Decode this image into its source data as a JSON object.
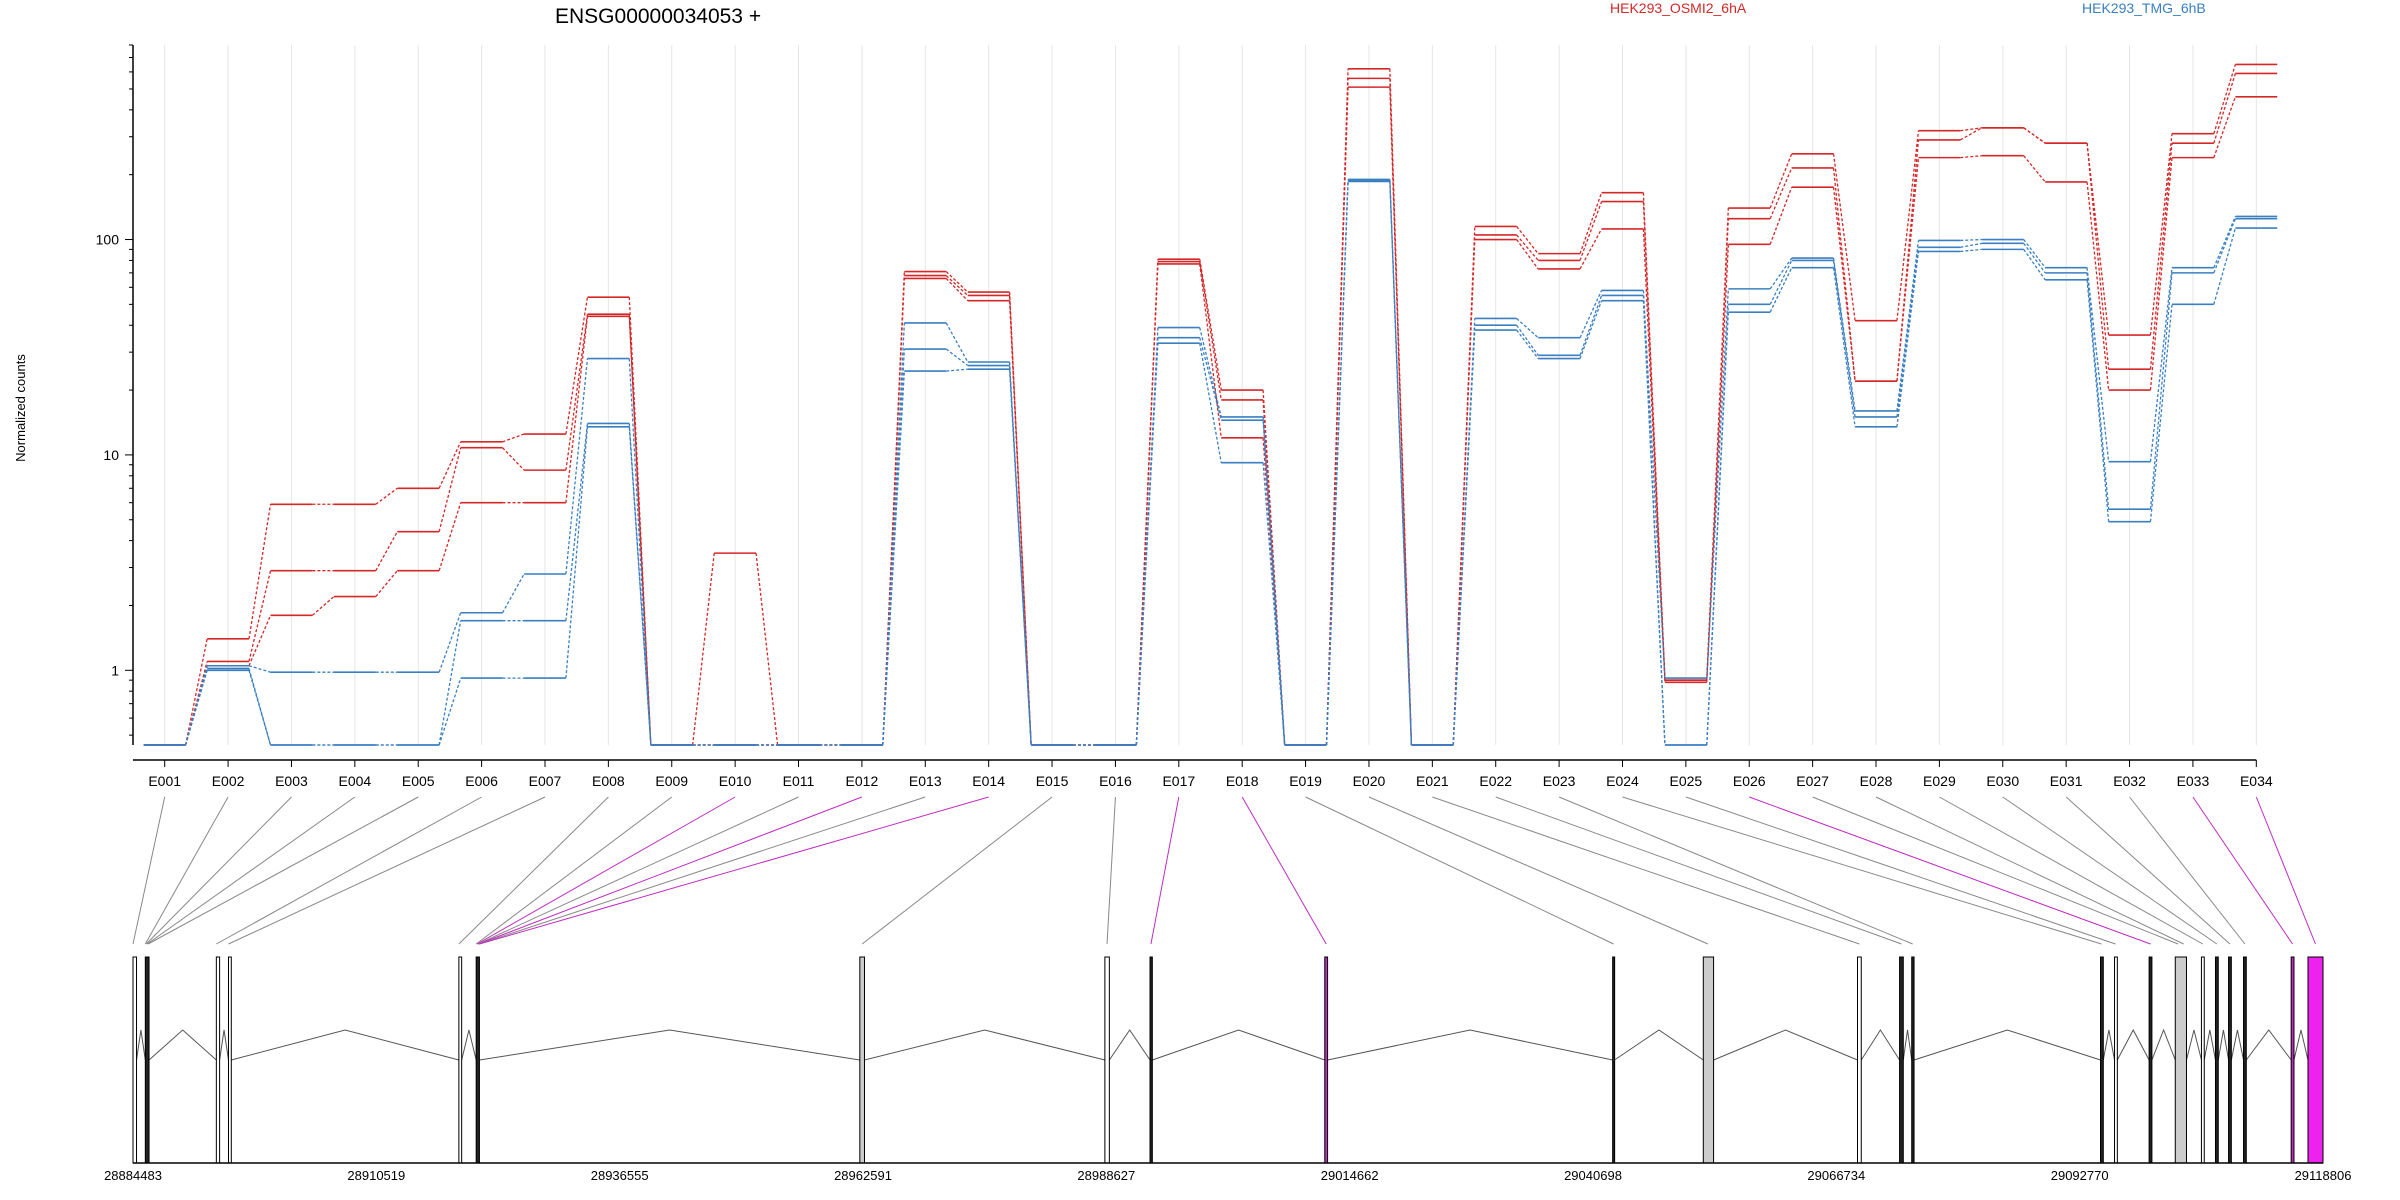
{
  "chart_data": {
    "type": "line",
    "title": "ENSG00000034053 +",
    "ylabel": "Normalized counts",
    "yscale": "log",
    "ylim": [
      0.45,
      800
    ],
    "y_ticks": [
      1,
      10,
      100
    ],
    "y_tick_labels": [
      "1",
      "10",
      "100"
    ],
    "grid": "vertical",
    "legend": [
      {
        "name": "HEK293_OSMI2_6hA",
        "color": "#d62728"
      },
      {
        "name": "HEK293_TMG_6hB",
        "color": "#3a7fc1"
      }
    ],
    "categories": [
      "E001",
      "E002",
      "E003",
      "E004",
      "E005",
      "E006",
      "E007",
      "E008",
      "E009",
      "E010",
      "E011",
      "E012",
      "E013",
      "E014",
      "E015",
      "E016",
      "E017",
      "E018",
      "E019",
      "E020",
      "E021",
      "E022",
      "E023",
      "E024",
      "E025",
      "E026",
      "E027",
      "E028",
      "E029",
      "E030",
      "E031",
      "E032",
      "E033",
      "E034"
    ],
    "series": [
      {
        "group": "HEK293_OSMI2_6hA",
        "color": "#d62728",
        "values": [
          0.45,
          1.4,
          5.9,
          5.9,
          7,
          11.5,
          12.5,
          54,
          0.45,
          3.5,
          0.45,
          0.45,
          71,
          57,
          0.45,
          0.45,
          81,
          20,
          0.45,
          620,
          0.45,
          115,
          86,
          165,
          0.9,
          140,
          250,
          42,
          320,
          330,
          280,
          36,
          310,
          650
        ]
      },
      {
        "group": "HEK293_OSMI2_6hA",
        "color": "#d62728",
        "values": [
          0.45,
          1.1,
          2.9,
          2.9,
          4.4,
          10.8,
          8.5,
          45,
          0.45,
          0.45,
          0.45,
          0.45,
          68,
          55,
          0.45,
          0.45,
          79,
          18,
          0.45,
          560,
          0.45,
          105,
          80,
          150,
          0.9,
          125,
          215,
          22,
          290,
          330,
          280,
          25,
          280,
          590
        ]
      },
      {
        "group": "HEK293_OSMI2_6hA",
        "color": "#d62728",
        "values": [
          0.45,
          1.05,
          1.8,
          2.2,
          2.9,
          6,
          6,
          44,
          0.45,
          0.45,
          0.45,
          0.45,
          66,
          52,
          0.45,
          0.45,
          77,
          12,
          0.45,
          510,
          0.45,
          100,
          73,
          112,
          0.88,
          95,
          175,
          22,
          240,
          245,
          185,
          20,
          240,
          460
        ]
      },
      {
        "group": "HEK293_TMG_6hB",
        "color": "#3a7fc1",
        "values": [
          0.45,
          1.05,
          0.98,
          0.98,
          0.98,
          1.85,
          2.8,
          28,
          0.45,
          0.45,
          0.45,
          0.45,
          41,
          27,
          0.45,
          0.45,
          39,
          15,
          0.45,
          190,
          0.45,
          43,
          35,
          58,
          0.92,
          59,
          82,
          16,
          99,
          100,
          74,
          9.3,
          74,
          128
        ]
      },
      {
        "group": "HEK293_TMG_6hB",
        "color": "#3a7fc1",
        "values": [
          0.45,
          1.02,
          0.45,
          0.45,
          0.45,
          1.7,
          1.7,
          14,
          0.45,
          0.45,
          0.45,
          0.45,
          31,
          26,
          0.45,
          0.45,
          35,
          14.5,
          0.45,
          188,
          0.45,
          40,
          29,
          55,
          0.45,
          50,
          80,
          15,
          92,
          96,
          70,
          5.6,
          70,
          125
        ]
      },
      {
        "group": "HEK293_TMG_6hB",
        "color": "#3a7fc1",
        "values": [
          0.45,
          1.0,
          0.45,
          0.45,
          0.45,
          0.92,
          0.92,
          13.5,
          0.45,
          0.45,
          0.45,
          0.45,
          24.5,
          25,
          0.45,
          0.45,
          33,
          9.2,
          0.45,
          186,
          0.45,
          38,
          28,
          52,
          0.45,
          46,
          74,
          13.5,
          88,
          90,
          65,
          4.9,
          50,
          113
        ]
      }
    ],
    "gene_model": {
      "coordinates": [
        "28884483",
        "28910519",
        "28936555",
        "28962591",
        "28988627",
        "29014662",
        "29040698",
        "29066734",
        "29092770",
        "29118806"
      ],
      "range": [
        28884483,
        29118806
      ],
      "exons": [
        {
          "start": 28884483,
          "end": 28884860,
          "color": "#ffffff"
        },
        {
          "start": 28885800,
          "end": 28886200,
          "color": "#222222"
        },
        {
          "start": 28893400,
          "end": 28893750,
          "color": "#ffffff"
        },
        {
          "start": 28894700,
          "end": 28895000,
          "color": "#ffffff"
        },
        {
          "start": 28919350,
          "end": 28919650,
          "color": "#ffffff"
        },
        {
          "start": 28921200,
          "end": 28921550,
          "color": "#222222"
        },
        {
          "start": 28962250,
          "end": 28962750,
          "color": "#cccccc"
        },
        {
          "start": 28988470,
          "end": 28988950,
          "color": "#ffffff"
        },
        {
          "start": 28993300,
          "end": 28993550,
          "color": "#222222"
        },
        {
          "start": 29012000,
          "end": 29012300,
          "color": "#c02cc0"
        },
        {
          "start": 29042800,
          "end": 29043000,
          "color": "#222222"
        },
        {
          "start": 29052500,
          "end": 29053600,
          "color": "#cccccc"
        },
        {
          "start": 29069000,
          "end": 29069400,
          "color": "#ffffff"
        },
        {
          "start": 29073500,
          "end": 29073900,
          "color": "#222222"
        },
        {
          "start": 29074800,
          "end": 29075050,
          "color": "#222222"
        },
        {
          "start": 29095000,
          "end": 29095300,
          "color": "#222222"
        },
        {
          "start": 29096500,
          "end": 29096800,
          "color": "#ffffff"
        },
        {
          "start": 29100200,
          "end": 29100500,
          "color": "#222222"
        },
        {
          "start": 29103000,
          "end": 29104200,
          "color": "#cccccc"
        },
        {
          "start": 29105800,
          "end": 29106100,
          "color": "#ffffff"
        },
        {
          "start": 29107300,
          "end": 29107600,
          "color": "#222222"
        },
        {
          "start": 29108700,
          "end": 29109000,
          "color": "#222222"
        },
        {
          "start": 29110300,
          "end": 29110600,
          "color": "#222222"
        },
        {
          "start": 29115400,
          "end": 29115700,
          "color": "#c02cc0"
        },
        {
          "start": 29117200,
          "end": 29118806,
          "color": "#ee22ee"
        }
      ],
      "bin_links": [
        {
          "bin": "E001",
          "pos": 28884483,
          "color": "#888888"
        },
        {
          "bin": "E002",
          "pos": 28885800,
          "color": "#888888"
        },
        {
          "bin": "E003",
          "pos": 28885900,
          "color": "#888888"
        },
        {
          "bin": "E004",
          "pos": 28886000,
          "color": "#888888"
        },
        {
          "bin": "E005",
          "pos": 28886100,
          "color": "#888888"
        },
        {
          "bin": "E006",
          "pos": 28893400,
          "color": "#888888"
        },
        {
          "bin": "E007",
          "pos": 28894700,
          "color": "#888888"
        },
        {
          "bin": "E008",
          "pos": 28919350,
          "color": "#888888"
        },
        {
          "bin": "E009",
          "pos": 28921200,
          "color": "#888888"
        },
        {
          "bin": "E010",
          "pos": 28921300,
          "color": "#c02cc0"
        },
        {
          "bin": "E011",
          "pos": 28921400,
          "color": "#888888"
        },
        {
          "bin": "E012",
          "pos": 28921450,
          "color": "#c02cc0"
        },
        {
          "bin": "E013",
          "pos": 28921500,
          "color": "#888888"
        },
        {
          "bin": "E014",
          "pos": 28921550,
          "color": "#c02cc0"
        },
        {
          "bin": "E015",
          "pos": 28962500,
          "color": "#888888"
        },
        {
          "bin": "E016",
          "pos": 28988700,
          "color": "#888888"
        },
        {
          "bin": "E017",
          "pos": 28993400,
          "color": "#c02cc0"
        },
        {
          "bin": "E018",
          "pos": 29012150,
          "color": "#c02cc0"
        },
        {
          "bin": "E019",
          "pos": 29042900,
          "color": "#888888"
        },
        {
          "bin": "E020",
          "pos": 29053000,
          "color": "#888888"
        },
        {
          "bin": "E021",
          "pos": 29069200,
          "color": "#888888"
        },
        {
          "bin": "E022",
          "pos": 29073700,
          "color": "#888888"
        },
        {
          "bin": "E023",
          "pos": 29074900,
          "color": "#888888"
        },
        {
          "bin": "E024",
          "pos": 29095100,
          "color": "#888888"
        },
        {
          "bin": "E025",
          "pos": 29096600,
          "color": "#888888"
        },
        {
          "bin": "E026",
          "pos": 29100350,
          "color": "#c02cc0"
        },
        {
          "bin": "E027",
          "pos": 29103300,
          "color": "#888888"
        },
        {
          "bin": "E028",
          "pos": 29103900,
          "color": "#888888"
        },
        {
          "bin": "E029",
          "pos": 29105950,
          "color": "#888888"
        },
        {
          "bin": "E030",
          "pos": 29107450,
          "color": "#888888"
        },
        {
          "bin": "E031",
          "pos": 29108850,
          "color": "#888888"
        },
        {
          "bin": "E032",
          "pos": 29110450,
          "color": "#888888"
        },
        {
          "bin": "E033",
          "pos": 29115550,
          "color": "#c02cc0"
        },
        {
          "bin": "E034",
          "pos": 29118000,
          "color": "#c02cc0"
        }
      ]
    }
  }
}
